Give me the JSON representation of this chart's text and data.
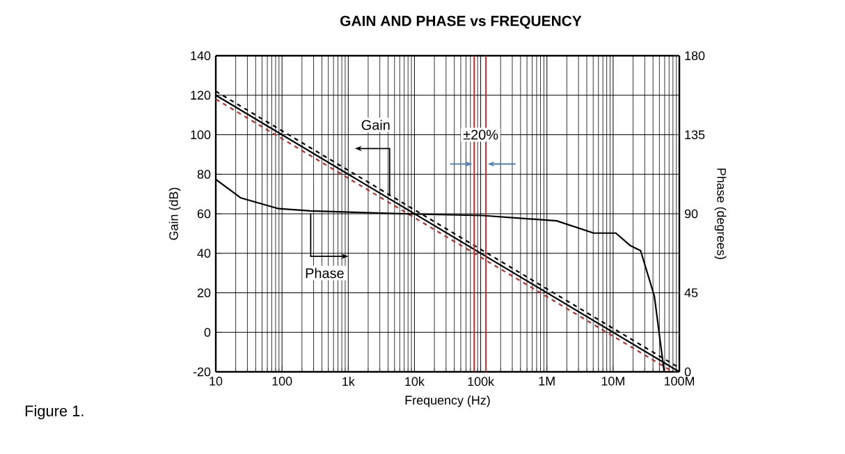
{
  "chart_data": {
    "type": "line",
    "title": "GAIN AND PHASE vs FREQUENCY",
    "xlabel": "Frequency (Hz)",
    "ylabel": "Gain (dB)",
    "y2label": "Phase (degrees)",
    "log": "x",
    "xlim": [
      10,
      100000000
    ],
    "xticks": [
      {
        "value": 10,
        "label": "10"
      },
      {
        "value": 100,
        "label": "100"
      },
      {
        "value": 1000,
        "label": "1k"
      },
      {
        "value": 10000,
        "label": "10k"
      },
      {
        "value": 100000,
        "label": "100k"
      },
      {
        "value": 1000000,
        "label": "1M"
      },
      {
        "value": 10000000,
        "label": "10M"
      },
      {
        "value": 100000000,
        "label": "100M"
      }
    ],
    "ylim": [
      -20,
      140
    ],
    "yticks": [
      -20,
      0,
      20,
      40,
      60,
      80,
      100,
      120,
      140
    ],
    "y2lim": [
      0,
      180
    ],
    "y2ticks": [
      0,
      45,
      90,
      135,
      180
    ],
    "grid": true,
    "marker": "none",
    "series": [
      {
        "color": "#000000",
        "line_style": "dashed",
        "x": [
          10,
          100000000
        ],
        "values": [
          122,
          -18
        ]
      },
      {
        "color": "#b03030",
        "line_style": "dashed",
        "x": [
          10,
          80000000
        ],
        "values": [
          118,
          -20
        ]
      },
      {
        "color": "#000000",
        "line_style": "solid",
        "x": [
          10,
          100000000
        ],
        "values": [
          120,
          -20
        ]
      },
      {
        "color": "#000000",
        "line_style": "solid",
        "axis": "y2",
        "x": [
          10,
          24,
          89,
          270,
          11000,
          107000,
          1400000,
          5100000,
          11000000,
          18000000,
          26000000,
          42000000,
          52000000,
          59000000
        ],
        "values": [
          109.6,
          99,
          92.9,
          91.6,
          89.8,
          89,
          86,
          79,
          79,
          72,
          69,
          43,
          16,
          0
        ]
      }
    ],
    "ref_lines": [
      {
        "axis": "x",
        "value": 80000,
        "color": "#b03030"
      },
      {
        "axis": "x",
        "value": 120000,
        "color": "#b03030"
      }
    ],
    "annotations": [
      {
        "text": "Gain",
        "x": 2600,
        "y": 105
      },
      {
        "text": "Phase",
        "x": 440,
        "y": 30
      },
      {
        "text": "±20%",
        "x": 100000,
        "y": 100
      },
      "Figure 1."
    ]
  }
}
